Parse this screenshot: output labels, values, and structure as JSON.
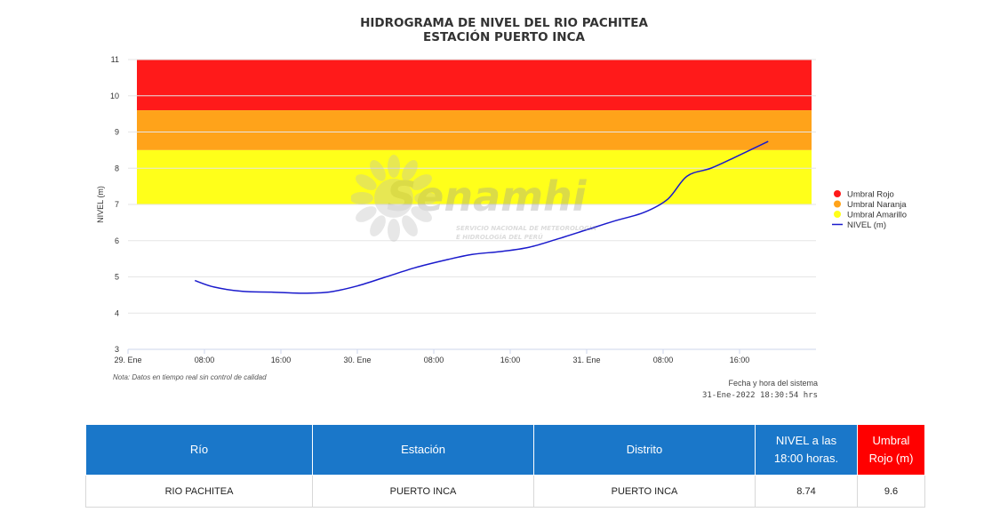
{
  "chart_data": {
    "type": "line",
    "title": "HIDROGRAMA DE NIVEL DEL RIO PACHITEA",
    "subtitle": "ESTACIÓN PUERTO INCA",
    "ylabel": "NIVEL (m)",
    "ylim": [
      3,
      11
    ],
    "y_ticks": [
      3,
      4,
      5,
      6,
      7,
      8,
      9,
      10,
      11
    ],
    "x_tick_labels": [
      "29. Ene",
      "08:00",
      "16:00",
      "30. Ene",
      "08:00",
      "16:00",
      "31. Ene",
      "08:00",
      "16:00"
    ],
    "x_tick_hours": [
      0,
      8,
      16,
      24,
      32,
      40,
      48,
      56,
      64
    ],
    "xlim_hours": [
      0,
      72
    ],
    "bands": [
      {
        "name": "Umbral Rojo",
        "from": 9.6,
        "to": 11,
        "color": "#ff1a1a"
      },
      {
        "name": "Umbral Naranja",
        "from": 8.5,
        "to": 9.6,
        "color": "#ffa31a"
      },
      {
        "name": "Umbral Amarillo",
        "from": 7.0,
        "to": 8.5,
        "color": "#ffff1a"
      }
    ],
    "series": [
      {
        "name": "NIVEL (m)",
        "color": "#1a1acc",
        "points": [
          [
            7.0,
            4.9
          ],
          [
            9.0,
            4.72
          ],
          [
            12.0,
            4.6
          ],
          [
            15.0,
            4.58
          ],
          [
            18.0,
            4.55
          ],
          [
            21.0,
            4.58
          ],
          [
            24.0,
            4.75
          ],
          [
            27.0,
            5.0
          ],
          [
            30.0,
            5.25
          ],
          [
            33.0,
            5.45
          ],
          [
            36.0,
            5.62
          ],
          [
            39.0,
            5.7
          ],
          [
            42.0,
            5.82
          ],
          [
            45.0,
            6.05
          ],
          [
            48.0,
            6.3
          ],
          [
            51.0,
            6.55
          ],
          [
            54.0,
            6.78
          ],
          [
            56.5,
            7.15
          ],
          [
            58.5,
            7.78
          ],
          [
            61.0,
            8.0
          ],
          [
            63.5,
            8.3
          ],
          [
            67.0,
            8.74
          ]
        ]
      }
    ],
    "legend": "right",
    "grid": true
  },
  "watermark": {
    "brand": "Senamhi",
    "line1": "SERVICIO NACIONAL DE METEOROLOGÍA",
    "line2": "E HIDROLOGÍA DEL PERÚ"
  },
  "note": "Nota: Datos en tiempo real sin control de calidad",
  "system_time": {
    "label": "Fecha y hora del sistema",
    "value": "31-Ene-2022 18:30:54 hrs"
  },
  "table": {
    "headers": [
      "Río",
      "Estación",
      "Distrito",
      "NIVEL a las 18:00 horas.",
      "Umbral Rojo (m)"
    ],
    "row": [
      "RIO PACHITEA",
      "PUERTO INCA",
      "PUERTO INCA",
      "8.74",
      "9.6"
    ]
  }
}
